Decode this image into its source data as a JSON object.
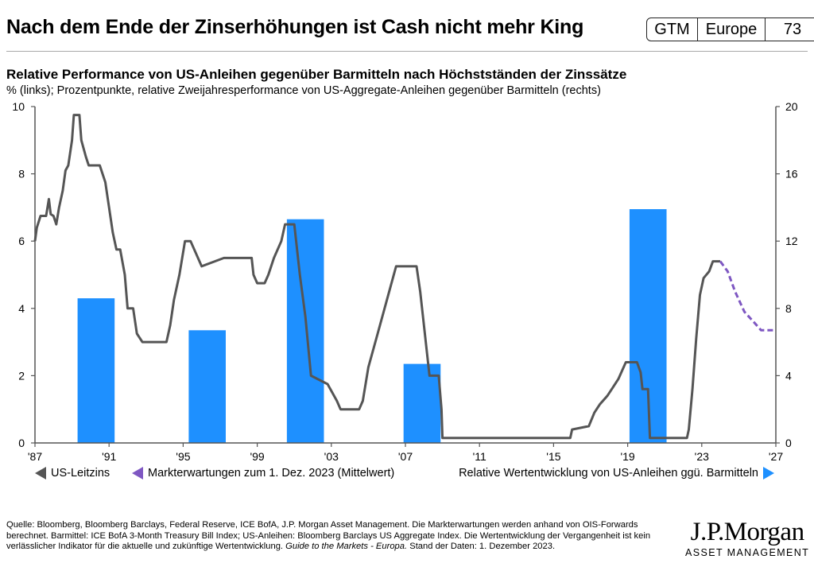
{
  "header": {
    "title": "Nach dem Ende der Zinserhöhungen ist Cash nicht mehr King",
    "badge": [
      "GTM",
      "Europe",
      "73"
    ]
  },
  "chart_data": {
    "type": "bar+line",
    "title": "Relative Performance von US-Anleihen gegenüber Barmitteln nach Höchstständen der Zinssätze",
    "subtitle": "% (links); Prozentpunkte, relative Zweijahresperformance von US-Aggregate-Anleihen gegenüber Barmitteln (rechts)",
    "x_range": [
      1987,
      2027
    ],
    "x_ticks": [
      {
        "value": 1987,
        "label": "'87"
      },
      {
        "value": 1991,
        "label": "'91"
      },
      {
        "value": 1995,
        "label": "'95"
      },
      {
        "value": 1999,
        "label": "'99"
      },
      {
        "value": 2003,
        "label": "'03"
      },
      {
        "value": 2007,
        "label": "'07"
      },
      {
        "value": 2011,
        "label": "'11"
      },
      {
        "value": 2015,
        "label": "'15"
      },
      {
        "value": 2019,
        "label": "'19"
      },
      {
        "value": 2023,
        "label": "'23"
      },
      {
        "value": 2027,
        "label": "'27"
      }
    ],
    "y_left": {
      "range": [
        0,
        10
      ],
      "ticks": [
        0,
        2,
        4,
        6,
        8,
        10
      ]
    },
    "y_right": {
      "range": [
        0,
        20
      ],
      "ticks": [
        0,
        4,
        8,
        12,
        16,
        20
      ]
    },
    "bars": {
      "name": "Relative Wertentwicklung von US-Anleihen ggü. Barmitteln",
      "axis": "right",
      "color": "#1e90ff",
      "values": [
        {
          "start": 1989.3,
          "end": 1991.3,
          "value": 8.6
        },
        {
          "start": 1995.3,
          "end": 1997.3,
          "value": 6.7
        },
        {
          "start": 2000.6,
          "end": 2002.6,
          "value": 13.3
        },
        {
          "start": 2006.9,
          "end": 2008.9,
          "value": 4.7
        },
        {
          "start": 2019.1,
          "end": 2021.1,
          "value": 13.9
        }
      ]
    },
    "lines": [
      {
        "name": "US-Leitzins",
        "axis": "left",
        "color": "#555555",
        "style": "solid",
        "points": [
          [
            1987.0,
            6.0
          ],
          [
            1987.1,
            6.4
          ],
          [
            1987.3,
            6.75
          ],
          [
            1987.6,
            6.75
          ],
          [
            1987.75,
            7.25
          ],
          [
            1987.85,
            6.8
          ],
          [
            1988.0,
            6.75
          ],
          [
            1988.15,
            6.5
          ],
          [
            1988.3,
            7.0
          ],
          [
            1988.5,
            7.5
          ],
          [
            1988.65,
            8.1
          ],
          [
            1988.8,
            8.25
          ],
          [
            1989.0,
            9.0
          ],
          [
            1989.1,
            9.75
          ],
          [
            1989.4,
            9.75
          ],
          [
            1989.5,
            9.0
          ],
          [
            1989.75,
            8.5
          ],
          [
            1989.9,
            8.25
          ],
          [
            1990.5,
            8.25
          ],
          [
            1990.8,
            7.75
          ],
          [
            1991.0,
            7.0
          ],
          [
            1991.2,
            6.25
          ],
          [
            1991.4,
            5.75
          ],
          [
            1991.6,
            5.75
          ],
          [
            1991.85,
            5.0
          ],
          [
            1992.0,
            4.0
          ],
          [
            1992.3,
            4.0
          ],
          [
            1992.5,
            3.25
          ],
          [
            1992.8,
            3.0
          ],
          [
            1994.1,
            3.0
          ],
          [
            1994.3,
            3.5
          ],
          [
            1994.5,
            4.25
          ],
          [
            1994.8,
            5.0
          ],
          [
            1995.1,
            6.0
          ],
          [
            1995.4,
            6.0
          ],
          [
            1995.6,
            5.75
          ],
          [
            1996.0,
            5.25
          ],
          [
            1997.2,
            5.5
          ],
          [
            1998.7,
            5.5
          ],
          [
            1998.8,
            5.0
          ],
          [
            1999.0,
            4.75
          ],
          [
            1999.4,
            4.75
          ],
          [
            1999.6,
            5.0
          ],
          [
            1999.9,
            5.5
          ],
          [
            2000.3,
            6.0
          ],
          [
            2000.5,
            6.5
          ],
          [
            2001.0,
            6.5
          ],
          [
            2001.3,
            5.0
          ],
          [
            2001.6,
            3.75
          ],
          [
            2001.9,
            2.0
          ],
          [
            2002.8,
            1.75
          ],
          [
            2003.3,
            1.25
          ],
          [
            2003.5,
            1.0
          ],
          [
            2004.5,
            1.0
          ],
          [
            2004.7,
            1.25
          ],
          [
            2005.0,
            2.25
          ],
          [
            2005.5,
            3.25
          ],
          [
            2006.0,
            4.25
          ],
          [
            2006.5,
            5.25
          ],
          [
            2007.6,
            5.25
          ],
          [
            2007.8,
            4.5
          ],
          [
            2008.0,
            3.5
          ],
          [
            2008.3,
            2.0
          ],
          [
            2008.8,
            2.0
          ],
          [
            2008.95,
            1.0
          ],
          [
            2009.0,
            0.15
          ],
          [
            2015.9,
            0.15
          ],
          [
            2016.0,
            0.4
          ],
          [
            2016.9,
            0.5
          ],
          [
            2017.2,
            0.9
          ],
          [
            2017.5,
            1.15
          ],
          [
            2017.9,
            1.4
          ],
          [
            2018.2,
            1.65
          ],
          [
            2018.5,
            1.9
          ],
          [
            2018.9,
            2.4
          ],
          [
            2019.5,
            2.4
          ],
          [
            2019.7,
            2.1
          ],
          [
            2019.8,
            1.6
          ],
          [
            2020.1,
            1.6
          ],
          [
            2020.2,
            0.15
          ],
          [
            2021.5,
            0.15
          ],
          [
            2022.2,
            0.15
          ],
          [
            2022.3,
            0.4
          ],
          [
            2022.5,
            1.6
          ],
          [
            2022.7,
            3.1
          ],
          [
            2022.9,
            4.4
          ],
          [
            2023.1,
            4.9
          ],
          [
            2023.4,
            5.1
          ],
          [
            2023.6,
            5.4
          ],
          [
            2024.0,
            5.4
          ]
        ]
      },
      {
        "name": "Markterwartungen zum 1. Dez. 2023 (Mittelwert)",
        "axis": "left",
        "color": "#7e57c2",
        "style": "dashed",
        "points": [
          [
            2024.0,
            5.4
          ],
          [
            2024.4,
            5.1
          ],
          [
            2024.8,
            4.5
          ],
          [
            2025.3,
            3.9
          ],
          [
            2025.8,
            3.6
          ],
          [
            2026.2,
            3.35
          ],
          [
            2027.0,
            3.35
          ]
        ]
      }
    ]
  },
  "legend": {
    "fed_rate": "US-Leitzins",
    "expectations": "Markterwartungen zum 1. Dez. 2023 (Mittelwert)",
    "relative": "Relative Wertentwicklung von US-Anleihen ggü. Barmitteln"
  },
  "footnote": {
    "text": "Quelle: Bloomberg, Bloomberg Barclays, Federal Reserve, ICE BofA, J.P. Morgan Asset Management. Die Markterwartungen werden anhand von OIS-Forwards berechnet. Barmittel: ICE BofA 3-Month Treasury Bill Index; US-Anleihen: Bloomberg Barclays US Aggregate Index. Die Wertentwicklung der Vergangenheit ist kein verlässlicher Indikator für die aktuelle und zukünftige Wertentwicklung. ",
    "italic": "Guide to the Markets - Europa.",
    "tail": " Stand der Daten: 1. Dezember 2023."
  },
  "logo": {
    "main": "J.P.Morgan",
    "sub": "ASSET MANAGEMENT"
  }
}
